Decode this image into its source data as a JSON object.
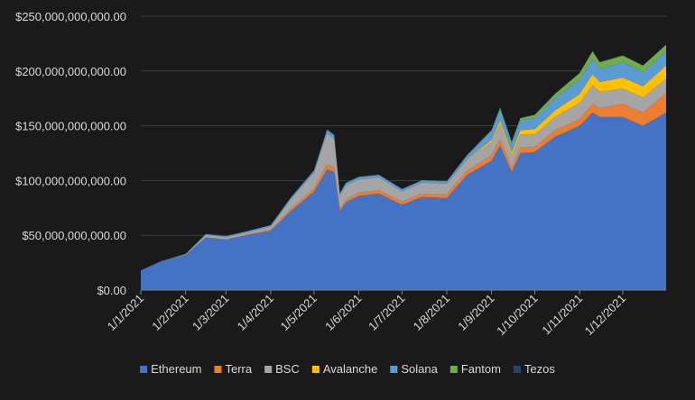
{
  "chart_data": {
    "type": "area",
    "stacked": true,
    "x_ticks": [
      "1/1/2021",
      "1/2/2021",
      "1/3/2021",
      "1/4/2021",
      "1/5/2021",
      "1/6/2021",
      "1/7/2021",
      "1/8/2021",
      "1/9/2021",
      "1/10/2021",
      "1/11/2021",
      "1/12/2021"
    ],
    "y_ticks": [
      "$0.00",
      "$50,000,000,000.00",
      "$100,000,000,000.00",
      "$150,000,000,000.00",
      "$200,000,000,000.00",
      "$250,000,000,000.00"
    ],
    "ylim": [
      0,
      250000000000
    ],
    "grid": true,
    "legend_position": "bottom",
    "x": [
      "2021-01-01",
      "2021-01-15",
      "2021-02-01",
      "2021-02-15",
      "2021-03-01",
      "2021-03-15",
      "2021-04-01",
      "2021-04-15",
      "2021-05-01",
      "2021-05-10",
      "2021-05-15",
      "2021-05-19",
      "2021-05-23",
      "2021-06-01",
      "2021-06-15",
      "2021-07-01",
      "2021-07-15",
      "2021-08-01",
      "2021-08-15",
      "2021-09-01",
      "2021-09-07",
      "2021-09-15",
      "2021-09-21",
      "2021-10-01",
      "2021-10-15",
      "2021-11-01",
      "2021-11-10",
      "2021-11-15",
      "2021-12-01",
      "2021-12-15",
      "2021-12-31"
    ],
    "series": [
      {
        "name": "Ethereum",
        "color": "#4472c4",
        "values": [
          18,
          26,
          32,
          48,
          46,
          50,
          54,
          72,
          90,
          110,
          108,
          72,
          80,
          86,
          88,
          78,
          85,
          84,
          105,
          118,
          132,
          108,
          125,
          126,
          140,
          150,
          162,
          158,
          158,
          150,
          162
        ]
      },
      {
        "name": "Terra",
        "color": "#ed7d31",
        "values": [
          0,
          0,
          0,
          0.2,
          0.3,
          0.5,
          1,
          2,
          3,
          5,
          4,
          2,
          2.5,
          3,
          3,
          3,
          3,
          4,
          4,
          5,
          6,
          4,
          5,
          5,
          6,
          6,
          8,
          8,
          12,
          12,
          18
        ]
      },
      {
        "name": "BSC",
        "color": "#a5a5a5",
        "values": [
          0,
          0,
          0.5,
          2,
          2,
          2,
          3,
          9,
          14,
          28,
          26,
          12,
          13,
          12,
          12,
          9,
          10,
          9,
          10,
          12,
          14,
          11,
          12,
          11,
          12,
          15,
          17,
          15,
          14,
          14,
          13
        ]
      },
      {
        "name": "Avalanche",
        "color": "#ffc000",
        "values": [
          0,
          0,
          0,
          0,
          0,
          0,
          0,
          0,
          0,
          0,
          0,
          0,
          0,
          0,
          0,
          0,
          0,
          0,
          0.5,
          2,
          3,
          3,
          4,
          5,
          6,
          8,
          10,
          9,
          10,
          10,
          12
        ]
      },
      {
        "name": "Solana",
        "color": "#5b9bd5",
        "values": [
          0,
          0.3,
          0.5,
          1,
          1,
          1,
          1.2,
          1.5,
          2,
          3,
          3,
          2,
          2,
          2,
          2,
          2,
          2,
          2,
          3,
          8,
          10,
          8,
          9,
          10,
          11,
          13,
          14,
          12,
          14,
          13,
          13
        ]
      },
      {
        "name": "Fantom",
        "color": "#70ad47",
        "values": [
          0,
          0,
          0,
          0,
          0,
          0,
          0,
          0,
          0.3,
          0.5,
          0.5,
          0.3,
          0.3,
          0.3,
          0.3,
          0.3,
          0.3,
          0.4,
          0.6,
          1,
          1.5,
          1.5,
          2,
          3,
          4,
          6,
          7,
          6,
          6,
          6,
          6
        ]
      },
      {
        "name": "Tezos",
        "color": "#264478",
        "values": [
          0.2,
          0.2,
          0.2,
          0.3,
          0.3,
          0.3,
          0.3,
          0.4,
          0.5,
          0.6,
          0.6,
          0.4,
          0.4,
          0.4,
          0.4,
          0.3,
          0.3,
          0.3,
          0.4,
          0.4,
          0.4,
          0.3,
          0.3,
          0.3,
          0.4,
          0.5,
          0.5,
          0.4,
          0.4,
          0.3,
          0.3
        ]
      }
    ],
    "value_unit_multiplier": 1000000000
  }
}
